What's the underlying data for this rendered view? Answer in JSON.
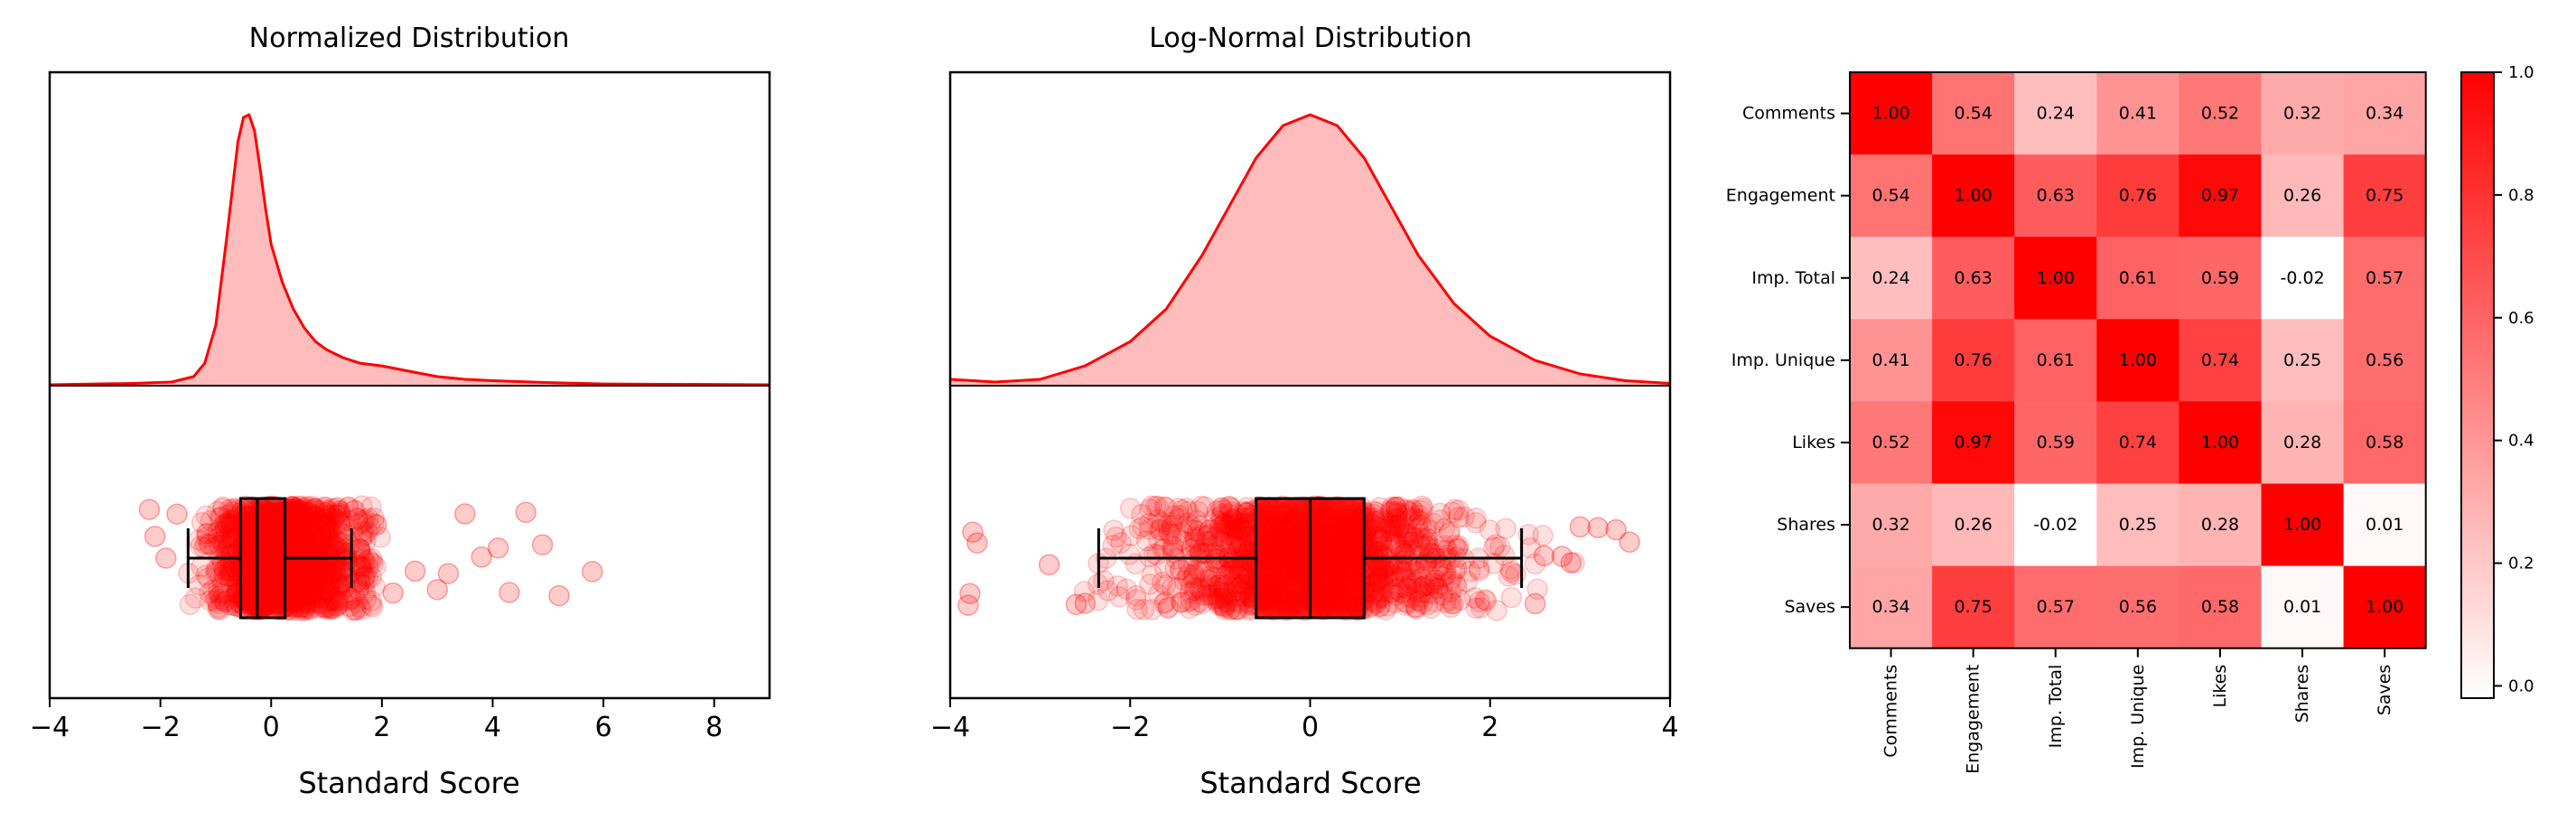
{
  "theme": {
    "accent": "#ff0000",
    "fill": "#ffbcbc",
    "axis": "#000000"
  },
  "panels": [
    {
      "title": "Normalized Distribution",
      "xlabel": "Standard Score",
      "xticks": [
        "−4",
        "−2",
        "0",
        "2",
        "4",
        "6",
        "8"
      ]
    },
    {
      "title": "Log-Normal Distribution",
      "xlabel": "Standard Score",
      "xticks": [
        "−4",
        "−2",
        "0",
        "2",
        "4"
      ]
    }
  ],
  "chart_data": [
    {
      "type": "area",
      "subtype": "density-and-boxplot",
      "title": "Normalized Distribution",
      "xlabel": "Standard Score",
      "xlim": [
        -4,
        9
      ],
      "xticks": [
        -4,
        -2,
        0,
        2,
        4,
        6,
        8
      ],
      "density": {
        "x": [
          -4,
          -2.5,
          -1.8,
          -1.4,
          -1.2,
          -1.0,
          -0.8,
          -0.6,
          -0.5,
          -0.4,
          -0.3,
          -0.2,
          -0.1,
          0.0,
          0.2,
          0.4,
          0.6,
          0.8,
          1.0,
          1.3,
          1.6,
          2.0,
          2.5,
          3.0,
          3.5,
          4.0,
          5.0,
          6.0,
          9.0
        ],
        "y": [
          0,
          0.005,
          0.01,
          0.03,
          0.08,
          0.22,
          0.55,
          0.9,
          0.99,
          1.0,
          0.94,
          0.8,
          0.65,
          0.52,
          0.38,
          0.28,
          0.21,
          0.16,
          0.13,
          0.1,
          0.08,
          0.07,
          0.05,
          0.03,
          0.02,
          0.015,
          0.008,
          0.003,
          0
        ]
      },
      "boxplot": {
        "whisker_low": -1.5,
        "q1": -0.55,
        "median": -0.25,
        "q3": 0.25,
        "whisker_high": 1.45
      },
      "outliers": [
        -2.2,
        -2.1,
        -1.9,
        -1.7,
        1.6,
        1.9,
        2.2,
        2.6,
        3.0,
        3.2,
        3.5,
        3.8,
        4.1,
        4.3,
        4.6,
        4.9,
        5.2,
        5.8
      ]
    },
    {
      "type": "area",
      "subtype": "density-and-boxplot",
      "title": "Log-Normal Distribution",
      "xlabel": "Standard Score",
      "xlim": [
        -4,
        4
      ],
      "xticks": [
        -4,
        -2,
        0,
        2,
        4
      ],
      "density": {
        "x": [
          -4,
          -3.5,
          -3.0,
          -2.5,
          -2.0,
          -1.6,
          -1.2,
          -0.9,
          -0.6,
          -0.3,
          0.0,
          0.3,
          0.6,
          0.9,
          1.2,
          1.6,
          2.0,
          2.5,
          3.0,
          3.5,
          4.0
        ],
        "y": [
          0.02,
          0.01,
          0.02,
          0.07,
          0.16,
          0.28,
          0.48,
          0.66,
          0.84,
          0.96,
          1.0,
          0.96,
          0.84,
          0.66,
          0.48,
          0.3,
          0.18,
          0.09,
          0.04,
          0.015,
          0.005
        ]
      },
      "boxplot": {
        "whisker_low": -2.35,
        "q1": -0.6,
        "median": 0.0,
        "q3": 0.6,
        "whisker_high": 2.35
      },
      "outliers": [
        -3.8,
        -3.78,
        -3.75,
        -3.7,
        -2.9,
        -2.6,
        -2.5,
        2.5,
        2.6,
        2.8,
        2.9,
        3.0,
        3.2,
        3.4,
        3.55
      ]
    },
    {
      "type": "heatmap",
      "rows": [
        "Comments",
        "Engagement",
        "Imp. Total",
        "Imp. Unique",
        "Likes",
        "Shares",
        "Saves"
      ],
      "columns": [
        "Comments",
        "Engagement",
        "Imp. Total",
        "Imp. Unique",
        "Likes",
        "Shares",
        "Saves"
      ],
      "values": [
        [
          1.0,
          0.54,
          0.24,
          0.41,
          0.52,
          0.32,
          0.34
        ],
        [
          0.54,
          1.0,
          0.63,
          0.76,
          0.97,
          0.26,
          0.75
        ],
        [
          0.24,
          0.63,
          1.0,
          0.61,
          0.59,
          -0.02,
          0.57
        ],
        [
          0.41,
          0.76,
          0.61,
          1.0,
          0.74,
          0.25,
          0.56
        ],
        [
          0.52,
          0.97,
          0.59,
          0.74,
          1.0,
          0.28,
          0.58
        ],
        [
          0.32,
          0.26,
          -0.02,
          0.25,
          0.28,
          1.0,
          0.01
        ],
        [
          0.34,
          0.75,
          0.57,
          0.56,
          0.58,
          0.01,
          1.0
        ]
      ],
      "colorbar": {
        "range": [
          -0.02,
          1.0
        ],
        "ticks": [
          "0.0",
          "0.2",
          "0.4",
          "0.6",
          "0.8",
          "1.0"
        ],
        "colors": [
          "#ffffff",
          "#ff0000"
        ]
      }
    }
  ]
}
